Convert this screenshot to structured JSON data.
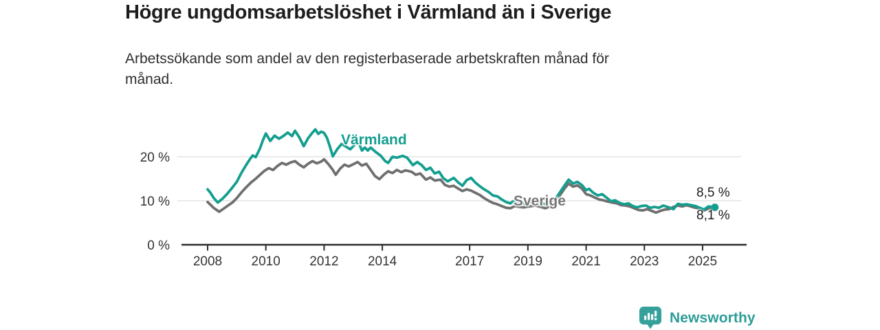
{
  "header": {
    "title": "Högre ungdomsarbetslöshet i Värmland än i Sverige",
    "subtitle": "Arbetssökande som andel av den registerbaserade arbetskraften månad för\nmånad."
  },
  "chart_data": {
    "type": "line",
    "unit": "%",
    "grid": "horizontal-only",
    "legend_position": "inline-labels",
    "ylim": [
      0,
      27
    ],
    "x_range": [
      2008,
      2025.6
    ],
    "y_ticks": [
      {
        "value": 20,
        "label": "20 %"
      },
      {
        "value": 10,
        "label": "10 %"
      },
      {
        "value": 0,
        "label": "0 %"
      }
    ],
    "x_ticks": [
      {
        "year": 2008,
        "label": "2008"
      },
      {
        "year": 2010,
        "label": "2010"
      },
      {
        "year": 2012,
        "label": "2012"
      },
      {
        "year": 2014,
        "label": "2014"
      },
      {
        "year": 2017,
        "label": "2017"
      },
      {
        "year": 2019,
        "label": "2019"
      },
      {
        "year": 2021,
        "label": "2021"
      },
      {
        "year": 2023,
        "label": "2023"
      },
      {
        "year": 2025,
        "label": "2025"
      }
    ],
    "series": [
      {
        "name": "Sverige",
        "color": "#6f6f6f",
        "end_label": "8,1 %",
        "end_value": 8.1,
        "end_dot": false,
        "points": [
          [
            2008.0,
            9.7
          ],
          [
            2008.1,
            9.1
          ],
          [
            2008.2,
            8.4
          ],
          [
            2008.4,
            7.5
          ],
          [
            2008.55,
            8.2
          ],
          [
            2008.7,
            8.9
          ],
          [
            2008.85,
            9.6
          ],
          [
            2009.0,
            10.6
          ],
          [
            2009.15,
            11.8
          ],
          [
            2009.3,
            12.9
          ],
          [
            2009.5,
            14.2
          ],
          [
            2009.65,
            15.0
          ],
          [
            2009.8,
            15.9
          ],
          [
            2009.95,
            16.8
          ],
          [
            2010.1,
            17.4
          ],
          [
            2010.25,
            17.0
          ],
          [
            2010.4,
            17.9
          ],
          [
            2010.55,
            18.6
          ],
          [
            2010.7,
            18.2
          ],
          [
            2010.85,
            18.7
          ],
          [
            2011.0,
            19.0
          ],
          [
            2011.15,
            18.2
          ],
          [
            2011.3,
            17.6
          ],
          [
            2011.45,
            18.4
          ],
          [
            2011.6,
            19.0
          ],
          [
            2011.75,
            18.5
          ],
          [
            2011.9,
            18.9
          ],
          [
            2012.0,
            19.4
          ],
          [
            2012.15,
            18.3
          ],
          [
            2012.3,
            17.0
          ],
          [
            2012.4,
            15.9
          ],
          [
            2012.55,
            17.3
          ],
          [
            2012.7,
            18.2
          ],
          [
            2012.85,
            17.8
          ],
          [
            2013.0,
            18.3
          ],
          [
            2013.15,
            18.8
          ],
          [
            2013.3,
            18.0
          ],
          [
            2013.45,
            18.4
          ],
          [
            2013.6,
            17.0
          ],
          [
            2013.75,
            15.6
          ],
          [
            2013.9,
            14.9
          ],
          [
            2014.05,
            15.9
          ],
          [
            2014.2,
            16.7
          ],
          [
            2014.35,
            16.3
          ],
          [
            2014.5,
            17.0
          ],
          [
            2014.65,
            16.5
          ],
          [
            2014.8,
            16.9
          ],
          [
            2015.0,
            16.6
          ],
          [
            2015.15,
            15.9
          ],
          [
            2015.3,
            16.2
          ],
          [
            2015.5,
            14.8
          ],
          [
            2015.65,
            15.3
          ],
          [
            2015.8,
            14.6
          ],
          [
            2016.0,
            14.8
          ],
          [
            2016.15,
            13.6
          ],
          [
            2016.3,
            13.2
          ],
          [
            2016.45,
            13.4
          ],
          [
            2016.6,
            12.8
          ],
          [
            2016.75,
            12.2
          ],
          [
            2016.9,
            12.6
          ],
          [
            2017.05,
            12.3
          ],
          [
            2017.2,
            11.8
          ],
          [
            2017.35,
            11.3
          ],
          [
            2017.5,
            10.6
          ],
          [
            2017.65,
            10.0
          ],
          [
            2017.8,
            9.5
          ],
          [
            2017.95,
            9.2
          ],
          [
            2018.1,
            8.8
          ],
          [
            2018.25,
            8.4
          ],
          [
            2018.4,
            8.3
          ],
          [
            2018.55,
            8.8
          ],
          [
            2018.7,
            8.6
          ],
          [
            2018.85,
            8.5
          ],
          [
            2019.05,
            8.7
          ],
          [
            2019.25,
            8.9
          ],
          [
            2019.45,
            8.6
          ],
          [
            2019.6,
            8.3
          ],
          [
            2019.8,
            8.8
          ],
          [
            2019.95,
            9.6
          ],
          [
            2020.1,
            11.2
          ],
          [
            2020.25,
            12.7
          ],
          [
            2020.4,
            13.9
          ],
          [
            2020.55,
            13.2
          ],
          [
            2020.7,
            13.5
          ],
          [
            2020.85,
            12.8
          ],
          [
            2021.0,
            11.5
          ],
          [
            2021.15,
            11.2
          ],
          [
            2021.3,
            10.7
          ],
          [
            2021.45,
            10.3
          ],
          [
            2021.6,
            10.1
          ],
          [
            2021.75,
            9.8
          ],
          [
            2021.9,
            9.6
          ],
          [
            2022.05,
            9.4
          ],
          [
            2022.2,
            9.0
          ],
          [
            2022.35,
            8.9
          ],
          [
            2022.5,
            8.7
          ],
          [
            2022.65,
            8.3
          ],
          [
            2022.8,
            7.9
          ],
          [
            2022.95,
            7.8
          ],
          [
            2023.1,
            8.1
          ],
          [
            2023.25,
            7.7
          ],
          [
            2023.4,
            7.3
          ],
          [
            2023.55,
            7.7
          ],
          [
            2023.7,
            8.0
          ],
          [
            2023.85,
            8.1
          ],
          [
            2024.0,
            8.6
          ],
          [
            2024.15,
            8.9
          ],
          [
            2024.3,
            8.7
          ],
          [
            2024.45,
            9.0
          ],
          [
            2024.6,
            8.7
          ],
          [
            2024.75,
            8.4
          ],
          [
            2024.9,
            8.2
          ],
          [
            2025.05,
            7.8
          ],
          [
            2025.2,
            8.2
          ],
          [
            2025.42,
            8.1
          ]
        ]
      },
      {
        "name": "Värmland",
        "color": "#149e8f",
        "end_label": "8,5 %",
        "end_value": 8.5,
        "end_dot": true,
        "points": [
          [
            2008.0,
            12.6
          ],
          [
            2008.1,
            11.8
          ],
          [
            2008.2,
            10.7
          ],
          [
            2008.35,
            9.6
          ],
          [
            2008.5,
            10.4
          ],
          [
            2008.65,
            11.4
          ],
          [
            2008.8,
            12.6
          ],
          [
            2009.0,
            14.3
          ],
          [
            2009.15,
            16.2
          ],
          [
            2009.3,
            17.9
          ],
          [
            2009.45,
            19.4
          ],
          [
            2009.55,
            20.3
          ],
          [
            2009.65,
            19.9
          ],
          [
            2009.8,
            21.9
          ],
          [
            2009.9,
            23.8
          ],
          [
            2010.0,
            25.3
          ],
          [
            2010.15,
            23.6
          ],
          [
            2010.3,
            24.8
          ],
          [
            2010.45,
            24.1
          ],
          [
            2010.6,
            24.7
          ],
          [
            2010.75,
            25.5
          ],
          [
            2010.9,
            24.7
          ],
          [
            2011.0,
            25.9
          ],
          [
            2011.15,
            24.4
          ],
          [
            2011.3,
            22.4
          ],
          [
            2011.45,
            24.2
          ],
          [
            2011.6,
            25.5
          ],
          [
            2011.7,
            26.2
          ],
          [
            2011.8,
            25.2
          ],
          [
            2011.9,
            25.7
          ],
          [
            2012.0,
            25.4
          ],
          [
            2012.1,
            24.3
          ],
          [
            2012.2,
            22.3
          ],
          [
            2012.3,
            20.1
          ],
          [
            2012.45,
            21.7
          ],
          [
            2012.6,
            22.9
          ],
          [
            2012.75,
            22.3
          ],
          [
            2012.9,
            21.7
          ],
          [
            2013.05,
            22.7
          ],
          [
            2013.15,
            23.8
          ],
          [
            2013.3,
            21.4
          ],
          [
            2013.4,
            22.1
          ],
          [
            2013.5,
            21.4
          ],
          [
            2013.6,
            22.1
          ],
          [
            2013.75,
            21.2
          ],
          [
            2013.95,
            20.2
          ],
          [
            2014.1,
            19.0
          ],
          [
            2014.2,
            18.6
          ],
          [
            2014.35,
            20.0
          ],
          [
            2014.5,
            19.8
          ],
          [
            2014.7,
            20.2
          ],
          [
            2014.85,
            19.8
          ],
          [
            2015.05,
            18.1
          ],
          [
            2015.2,
            18.8
          ],
          [
            2015.35,
            18.1
          ],
          [
            2015.5,
            17.0
          ],
          [
            2015.65,
            17.5
          ],
          [
            2015.8,
            16.2
          ],
          [
            2015.95,
            16.6
          ],
          [
            2016.1,
            15.1
          ],
          [
            2016.25,
            14.4
          ],
          [
            2016.45,
            15.2
          ],
          [
            2016.6,
            14.2
          ],
          [
            2016.75,
            13.4
          ],
          [
            2016.9,
            14.7
          ],
          [
            2017.05,
            15.2
          ],
          [
            2017.2,
            14.1
          ],
          [
            2017.35,
            13.3
          ],
          [
            2017.5,
            12.6
          ],
          [
            2017.65,
            12.0
          ],
          [
            2017.8,
            11.2
          ],
          [
            2017.95,
            11.0
          ],
          [
            2018.1,
            10.3
          ],
          [
            2018.25,
            9.7
          ],
          [
            2018.4,
            9.4
          ],
          [
            2018.5,
            9.9
          ],
          [
            2018.65,
            9.5
          ],
          [
            2018.85,
            9.3
          ],
          [
            2019.05,
            9.6
          ],
          [
            2019.25,
            9.9
          ],
          [
            2019.45,
            9.6
          ],
          [
            2019.6,
            9.2
          ],
          [
            2019.8,
            9.8
          ],
          [
            2019.95,
            10.5
          ],
          [
            2020.1,
            11.9
          ],
          [
            2020.25,
            13.4
          ],
          [
            2020.4,
            14.8
          ],
          [
            2020.55,
            13.9
          ],
          [
            2020.7,
            14.3
          ],
          [
            2020.85,
            13.6
          ],
          [
            2021.0,
            12.4
          ],
          [
            2021.1,
            12.7
          ],
          [
            2021.25,
            11.8
          ],
          [
            2021.4,
            11.2
          ],
          [
            2021.55,
            11.5
          ],
          [
            2021.7,
            10.7
          ],
          [
            2021.85,
            9.9
          ],
          [
            2022.0,
            10.1
          ],
          [
            2022.15,
            9.5
          ],
          [
            2022.3,
            9.2
          ],
          [
            2022.45,
            9.4
          ],
          [
            2022.6,
            8.8
          ],
          [
            2022.75,
            8.5
          ],
          [
            2022.9,
            8.8
          ],
          [
            2023.05,
            8.9
          ],
          [
            2023.2,
            8.4
          ],
          [
            2023.35,
            8.6
          ],
          [
            2023.5,
            8.4
          ],
          [
            2023.65,
            8.9
          ],
          [
            2023.8,
            8.6
          ],
          [
            2024.0,
            8.1
          ],
          [
            2024.15,
            9.3
          ],
          [
            2024.3,
            9.1
          ],
          [
            2024.45,
            9.2
          ],
          [
            2024.6,
            9.0
          ],
          [
            2024.75,
            8.8
          ],
          [
            2024.9,
            8.4
          ],
          [
            2025.05,
            8.0
          ],
          [
            2025.2,
            8.7
          ],
          [
            2025.42,
            8.5
          ]
        ]
      }
    ],
    "colors": {
      "varmland": "#149e8f",
      "sverige": "#6f6f6f",
      "gridline": "#e3e3e3",
      "axis": "#2b2b2b",
      "tick_label": "#333333",
      "brand": "#2d9d99"
    }
  },
  "footer": {
    "brand": "Newsworthy"
  }
}
